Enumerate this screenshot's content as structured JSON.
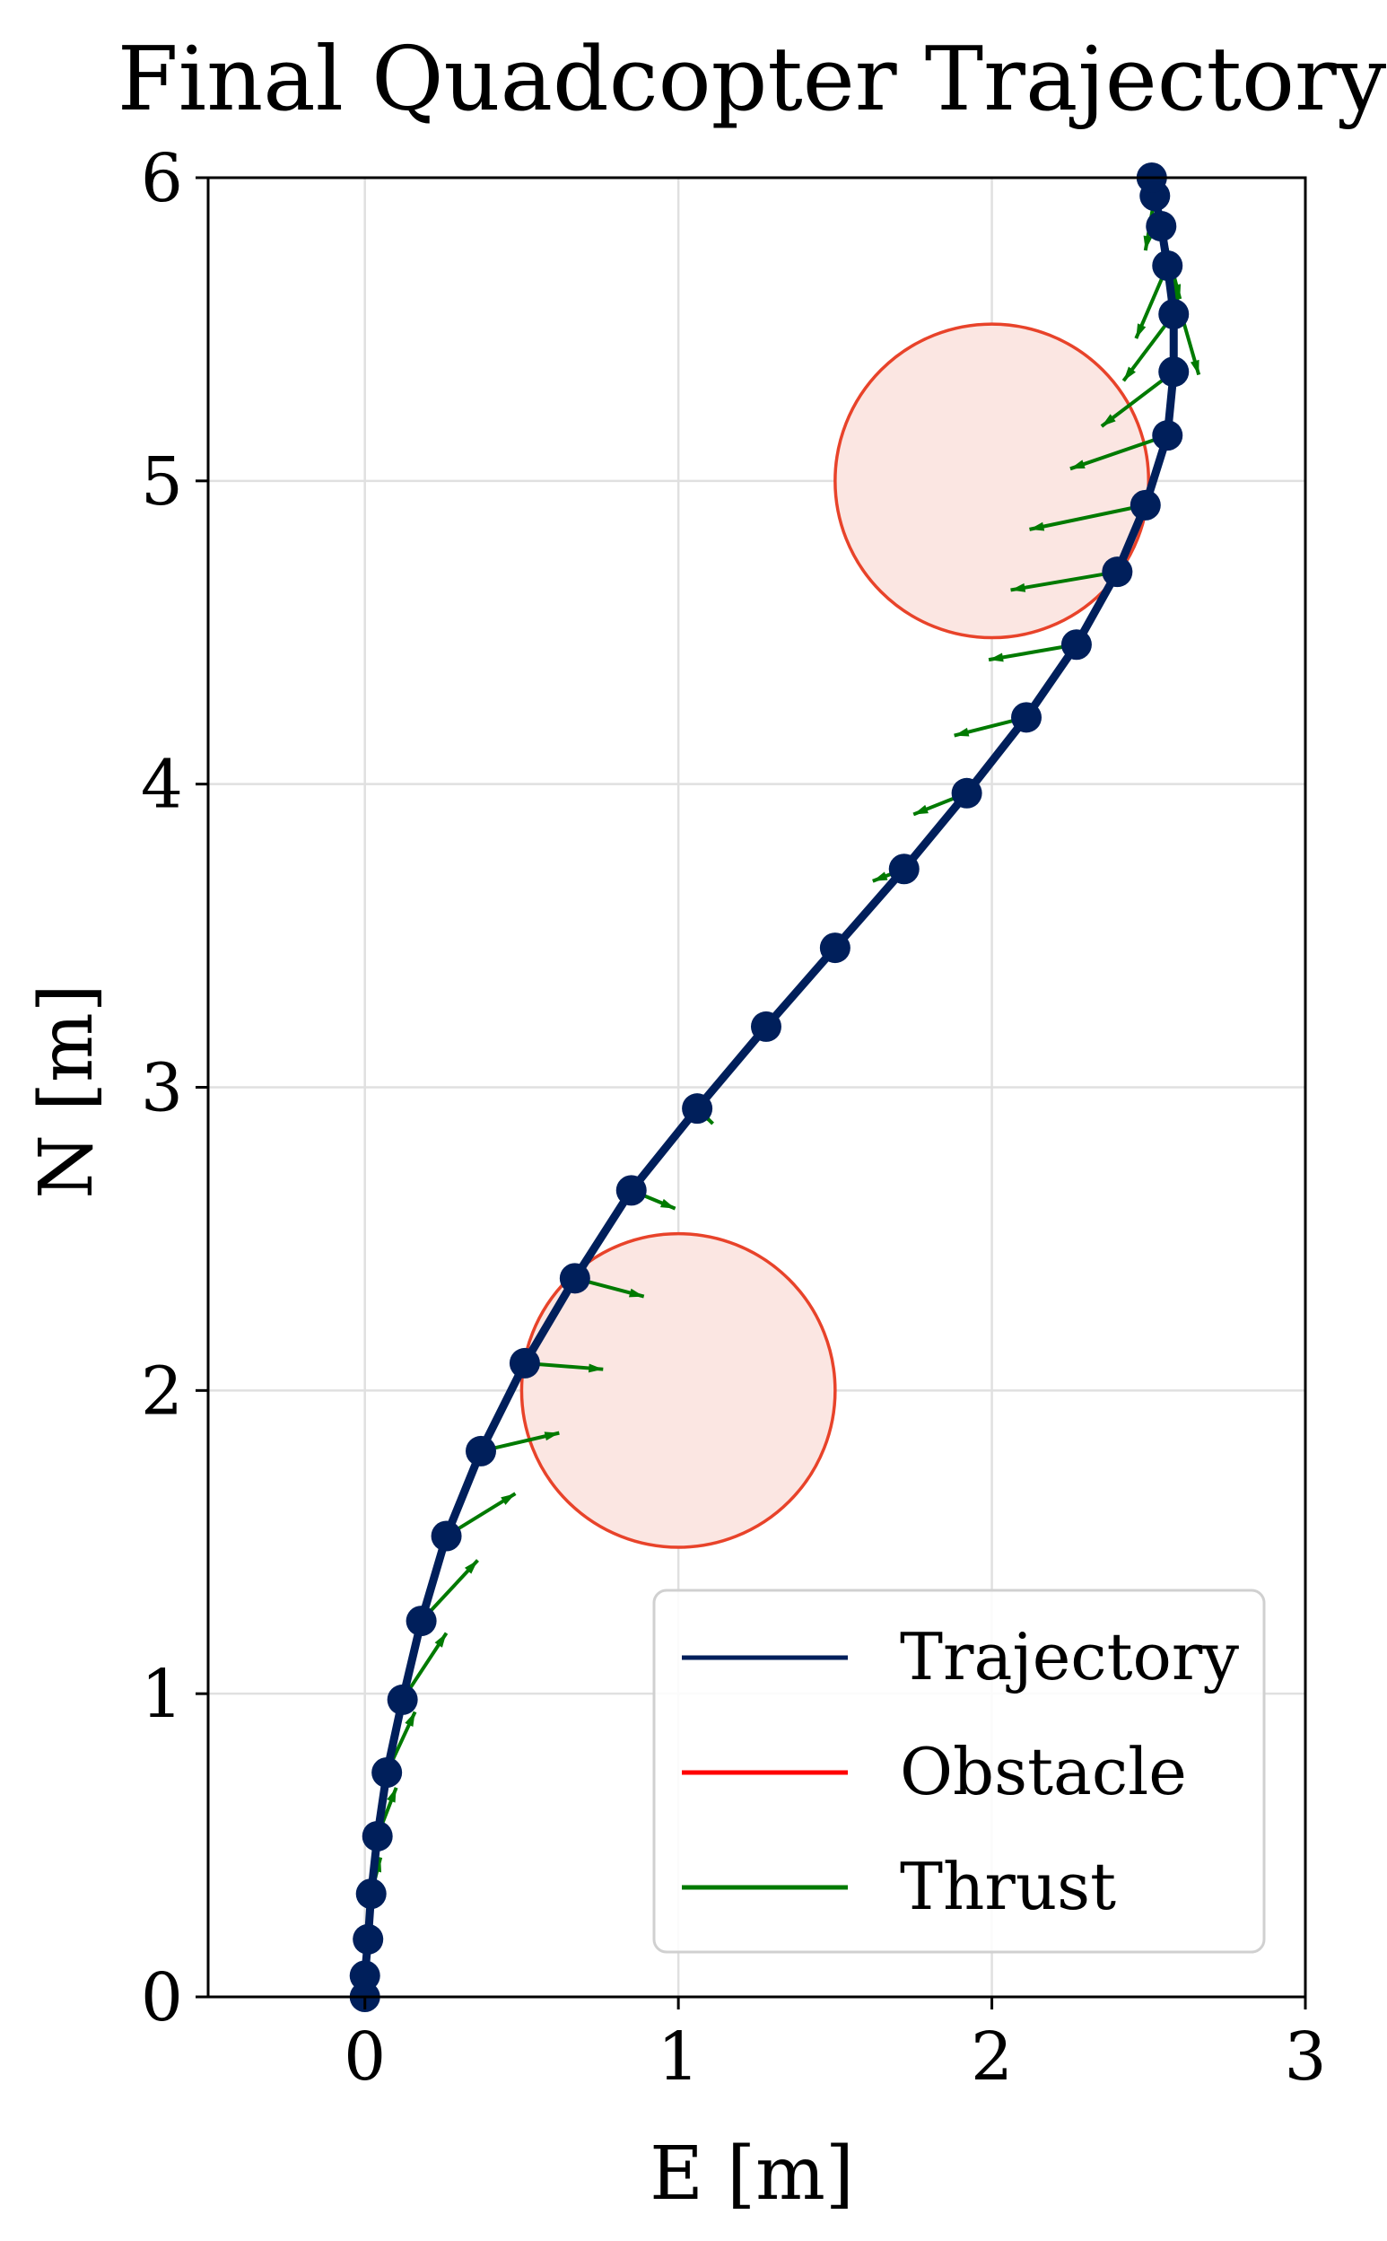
{
  "chart_data": {
    "type": "line",
    "title": "Final Quadcopter Trajectory",
    "xlabel": "E [m]",
    "ylabel": "N [m]",
    "xlim": [
      -0.5,
      3
    ],
    "ylim": [
      0,
      6
    ],
    "xticks": [
      0,
      1,
      2,
      3
    ],
    "yticks": [
      0,
      1,
      2,
      3,
      4,
      5,
      6
    ],
    "grid": true,
    "legend_placement": "lower-right",
    "colors": {
      "trajectory": "#001f5b",
      "obstacle_edge": "#e8432a",
      "obstacle_fill": "#fbe6e2",
      "obstacle_legend": "#ff0000",
      "thrust": "#007a00",
      "grid": "#e0e0e0"
    },
    "legend": [
      {
        "key": "trajectory",
        "label": "Trajectory"
      },
      {
        "key": "obstacle",
        "label": "Obstacle"
      },
      {
        "key": "thrust",
        "label": "Thrust"
      }
    ],
    "obstacles": [
      {
        "center": [
          2.0,
          5.0
        ],
        "radius": 0.5
      },
      {
        "center": [
          1.0,
          2.0
        ],
        "radius": 0.5
      }
    ],
    "trajectory": [
      {
        "e": 0.0,
        "n": 0.0
      },
      {
        "e": 0.0,
        "n": 0.07
      },
      {
        "e": 0.01,
        "n": 0.19
      },
      {
        "e": 0.02,
        "n": 0.34
      },
      {
        "e": 0.04,
        "n": 0.53
      },
      {
        "e": 0.07,
        "n": 0.74
      },
      {
        "e": 0.12,
        "n": 0.98
      },
      {
        "e": 0.18,
        "n": 1.24
      },
      {
        "e": 0.26,
        "n": 1.52
      },
      {
        "e": 0.37,
        "n": 1.8
      },
      {
        "e": 0.51,
        "n": 2.09
      },
      {
        "e": 0.67,
        "n": 2.37
      },
      {
        "e": 0.85,
        "n": 2.66
      },
      {
        "e": 1.06,
        "n": 2.93
      },
      {
        "e": 1.28,
        "n": 3.2
      },
      {
        "e": 1.5,
        "n": 3.46
      },
      {
        "e": 1.72,
        "n": 3.72
      },
      {
        "e": 1.92,
        "n": 3.97
      },
      {
        "e": 2.11,
        "n": 4.22
      },
      {
        "e": 2.27,
        "n": 4.46
      },
      {
        "e": 2.4,
        "n": 4.7
      },
      {
        "e": 2.49,
        "n": 4.92
      },
      {
        "e": 2.56,
        "n": 5.15
      },
      {
        "e": 2.58,
        "n": 5.36
      },
      {
        "e": 2.58,
        "n": 5.55
      },
      {
        "e": 2.56,
        "n": 5.71
      },
      {
        "e": 2.54,
        "n": 5.84
      },
      {
        "e": 2.52,
        "n": 5.94
      },
      {
        "e": 2.51,
        "n": 6.0
      }
    ],
    "thrust_vectors": [
      {
        "e": 0.0,
        "n": 0.07,
        "de": 0.0,
        "dn": 0.05
      },
      {
        "e": 0.01,
        "n": 0.19,
        "de": 0.01,
        "dn": 0.08
      },
      {
        "e": 0.02,
        "n": 0.34,
        "de": 0.03,
        "dn": 0.12
      },
      {
        "e": 0.04,
        "n": 0.53,
        "de": 0.06,
        "dn": 0.16
      },
      {
        "e": 0.07,
        "n": 0.74,
        "de": 0.09,
        "dn": 0.2
      },
      {
        "e": 0.12,
        "n": 0.98,
        "de": 0.14,
        "dn": 0.22
      },
      {
        "e": 0.18,
        "n": 1.24,
        "de": 0.18,
        "dn": 0.2
      },
      {
        "e": 0.26,
        "n": 1.52,
        "de": 0.22,
        "dn": 0.14
      },
      {
        "e": 0.37,
        "n": 1.8,
        "de": 0.25,
        "dn": 0.06
      },
      {
        "e": 0.51,
        "n": 2.09,
        "de": 0.25,
        "dn": -0.02
      },
      {
        "e": 0.67,
        "n": 2.37,
        "de": 0.22,
        "dn": -0.06
      },
      {
        "e": 0.85,
        "n": 2.66,
        "de": 0.14,
        "dn": -0.06
      },
      {
        "e": 1.06,
        "n": 2.93,
        "de": 0.05,
        "dn": -0.05
      },
      {
        "e": 1.28,
        "n": 3.2,
        "de": 0.01,
        "dn": -0.03
      },
      {
        "e": 1.5,
        "n": 3.46,
        "de": -0.01,
        "dn": 0.0
      },
      {
        "e": 1.72,
        "n": 3.72,
        "de": -0.1,
        "dn": -0.04
      },
      {
        "e": 1.92,
        "n": 3.97,
        "de": -0.17,
        "dn": -0.07
      },
      {
        "e": 2.11,
        "n": 4.22,
        "de": -0.23,
        "dn": -0.06
      },
      {
        "e": 2.27,
        "n": 4.46,
        "de": -0.28,
        "dn": -0.05
      },
      {
        "e": 2.4,
        "n": 4.7,
        "de": -0.34,
        "dn": -0.06
      },
      {
        "e": 2.49,
        "n": 4.92,
        "de": -0.37,
        "dn": -0.08
      },
      {
        "e": 2.56,
        "n": 5.15,
        "de": -0.31,
        "dn": -0.11
      },
      {
        "e": 2.58,
        "n": 5.36,
        "de": -0.23,
        "dn": -0.18
      },
      {
        "e": 2.58,
        "n": 5.55,
        "de": -0.16,
        "dn": -0.22
      },
      {
        "e": 2.56,
        "n": 5.71,
        "de": -0.1,
        "dn": -0.24
      },
      {
        "e": 2.56,
        "n": 5.71,
        "de": 0.1,
        "dn": -0.36
      },
      {
        "e": 2.54,
        "n": 5.84,
        "de": 0.06,
        "dn": -0.24
      },
      {
        "e": 2.52,
        "n": 5.94,
        "de": -0.03,
        "dn": -0.18
      }
    ]
  }
}
